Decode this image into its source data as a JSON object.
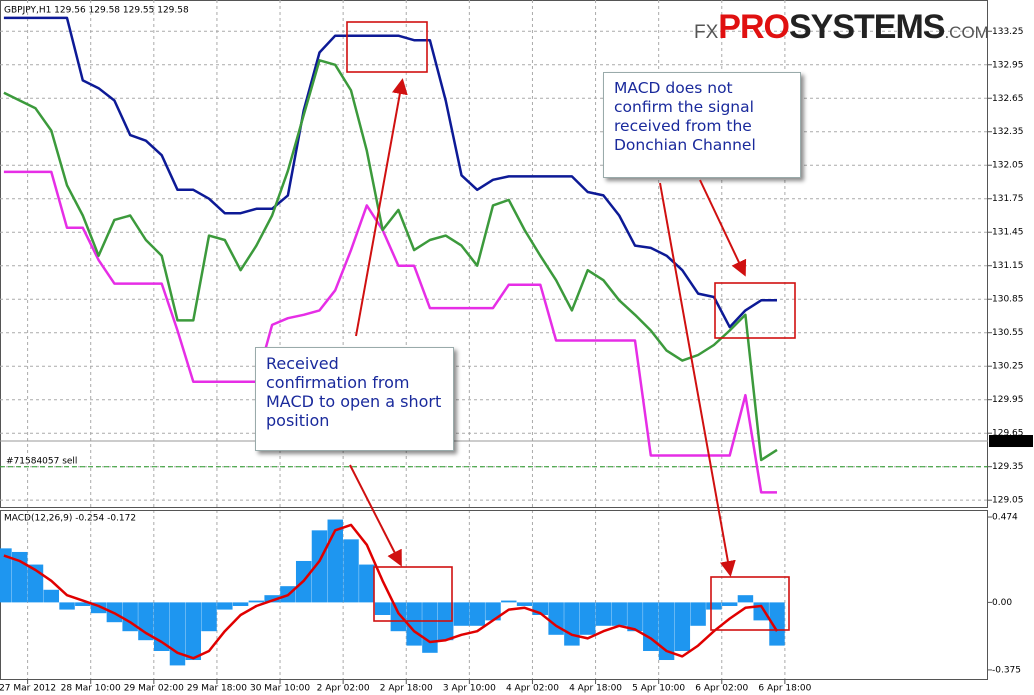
{
  "chart_data": [
    {
      "type": "line",
      "title": "GBPJPY,H1  129.56 129.58 129.55 129.58",
      "logo": [
        "FX",
        "PRO",
        "SYSTEMS",
        ".COM"
      ],
      "annotations": [
        "MACD does not confirm the signal received from the Donchian Channel",
        "Received confirmation from MACD to open a short position"
      ],
      "order_label": "#71584057 sell",
      "order_price": 129.35,
      "current_price": {
        "value": 129.58,
        "label": "129.58"
      },
      "x": [
        0,
        4,
        8,
        12,
        16,
        20,
        24,
        28,
        32,
        36,
        40,
        44,
        48,
        52,
        56,
        60,
        64,
        68,
        72,
        76,
        80,
        84,
        88,
        92,
        96,
        100,
        104,
        108,
        112,
        116,
        120,
        124,
        128,
        132,
        136,
        140,
        144,
        148,
        152,
        156,
        160,
        164,
        168,
        172,
        176,
        180,
        184,
        188,
        192,
        196
      ],
      "xlim": [
        -1,
        249.5
      ],
      "xticks": [
        {
          "value": 6,
          "label": "27 Mar 2012"
        },
        {
          "value": 22,
          "label": "28 Mar 10:00"
        },
        {
          "value": 38,
          "label": "29 Mar 02:00"
        },
        {
          "value": 54,
          "label": "29 Mar 18:00"
        },
        {
          "value": 70,
          "label": "30 Mar 10:00"
        },
        {
          "value": 86,
          "label": "2 Apr 02:00"
        },
        {
          "value": 102,
          "label": "2 Apr 18:00"
        },
        {
          "value": 118,
          "label": "3 Apr 10:00"
        },
        {
          "value": 134,
          "label": "4 Apr 02:00"
        },
        {
          "value": 150,
          "label": "4 Apr 18:00"
        },
        {
          "value": 166,
          "label": "5 Apr 10:00"
        },
        {
          "value": 182,
          "label": "6 Apr 02:00"
        },
        {
          "value": 198,
          "label": "6 Apr 18:00"
        }
      ],
      "ylim": [
        128.98,
        133.53
      ],
      "yticks": [
        133.25,
        132.95,
        132.65,
        132.35,
        132.05,
        131.75,
        131.45,
        131.15,
        130.85,
        130.55,
        130.25,
        129.95,
        129.65,
        129.35,
        129.05
      ],
      "grid": true,
      "series": [
        {
          "color": "#0d1a96",
          "values": [
            133.37,
            133.37,
            133.37,
            133.37,
            133.37,
            132.81,
            132.74,
            132.63,
            132.32,
            132.27,
            132.14,
            131.83,
            131.83,
            131.75,
            131.62,
            131.62,
            131.66,
            131.66,
            131.78,
            132.54,
            133.06,
            133.21,
            133.21,
            133.21,
            133.21,
            133.21,
            133.17,
            133.17,
            132.63,
            131.96,
            131.83,
            131.92,
            131.95,
            131.95,
            131.95,
            131.95,
            131.95,
            131.81,
            131.78,
            131.6,
            131.33,
            131.31,
            131.24,
            131.11,
            130.9,
            130.87,
            130.6,
            130.75,
            130.84,
            130.84
          ]
        },
        {
          "color": "#e62ee6",
          "values": [
            131.99,
            131.99,
            131.99,
            131.99,
            131.49,
            131.49,
            131.2,
            130.99,
            130.99,
            130.99,
            130.99,
            130.57,
            130.11,
            130.11,
            130.11,
            130.11,
            130.11,
            130.62,
            130.68,
            130.71,
            130.75,
            130.93,
            131.29,
            131.69,
            131.47,
            131.15,
            131.15,
            130.77,
            130.77,
            130.77,
            130.77,
            130.77,
            130.98,
            130.98,
            130.98,
            130.48,
            130.48,
            130.48,
            130.48,
            130.48,
            130.48,
            129.45,
            129.45,
            129.45,
            129.45,
            129.45,
            129.45,
            129.99,
            129.12,
            129.12
          ]
        },
        {
          "color": "#3c9a3c",
          "values": [
            132.7,
            132.63,
            132.56,
            132.36,
            131.87,
            131.6,
            131.24,
            131.56,
            131.6,
            131.38,
            131.24,
            130.66,
            130.66,
            131.42,
            131.38,
            131.11,
            131.33,
            131.6,
            132.0,
            132.5,
            132.99,
            132.95,
            132.72,
            132.18,
            131.47,
            131.65,
            131.29,
            131.38,
            131.42,
            131.33,
            131.15,
            131.69,
            131.74,
            131.47,
            131.24,
            131.02,
            130.75,
            131.11,
            131.02,
            130.84,
            130.71,
            130.57,
            130.39,
            130.3,
            130.35,
            130.44,
            130.57,
            130.71,
            129.41,
            129.5
          ]
        }
      ]
    },
    {
      "type": "bar",
      "title": "MACD(12,26,9) -0.254 -0.172",
      "x": [
        0,
        4,
        8,
        12,
        16,
        20,
        24,
        28,
        32,
        36,
        40,
        44,
        48,
        52,
        56,
        60,
        64,
        68,
        72,
        76,
        80,
        84,
        88,
        92,
        96,
        100,
        104,
        108,
        112,
        116,
        120,
        124,
        128,
        132,
        136,
        140,
        144,
        148,
        152,
        156,
        160,
        164,
        168,
        172,
        176,
        180,
        184,
        188,
        192,
        196
      ],
      "xlim": [
        -1,
        249.5
      ],
      "ylim": [
        -0.431,
        0.513
      ],
      "yticks": [
        0.474,
        {
          "value": 0,
          "label": "0.00"
        },
        -0.375
      ],
      "series": [
        {
          "type": "bar",
          "color": "#1e96f0",
          "values": [
            0.3,
            0.28,
            0.21,
            0.07,
            -0.04,
            -0.02,
            -0.06,
            -0.11,
            -0.16,
            -0.21,
            -0.27,
            -0.35,
            -0.32,
            -0.16,
            -0.04,
            -0.02,
            0.01,
            0.04,
            0.09,
            0.23,
            0.4,
            0.46,
            0.35,
            0.21,
            -0.07,
            -0.16,
            -0.24,
            -0.28,
            -0.21,
            -0.13,
            -0.13,
            -0.1,
            0.01,
            -0.02,
            -0.07,
            -0.18,
            -0.24,
            -0.18,
            -0.13,
            -0.13,
            -0.16,
            -0.27,
            -0.32,
            -0.27,
            -0.13,
            -0.04,
            -0.02,
            0.04,
            -0.1,
            -0.24
          ]
        },
        {
          "type": "line",
          "color": "#e00000",
          "values": [
            0.26,
            0.23,
            0.18,
            0.12,
            0.04,
            0.01,
            -0.02,
            -0.06,
            -0.11,
            -0.17,
            -0.22,
            -0.28,
            -0.31,
            -0.27,
            -0.16,
            -0.07,
            -0.02,
            0.01,
            0.04,
            0.12,
            0.23,
            0.4,
            0.43,
            0.32,
            0.12,
            -0.06,
            -0.16,
            -0.22,
            -0.21,
            -0.18,
            -0.16,
            -0.1,
            -0.04,
            -0.03,
            -0.06,
            -0.13,
            -0.18,
            -0.2,
            -0.16,
            -0.13,
            -0.15,
            -0.2,
            -0.27,
            -0.3,
            -0.24,
            -0.16,
            -0.09,
            -0.03,
            -0.02,
            -0.16
          ]
        }
      ]
    }
  ]
}
